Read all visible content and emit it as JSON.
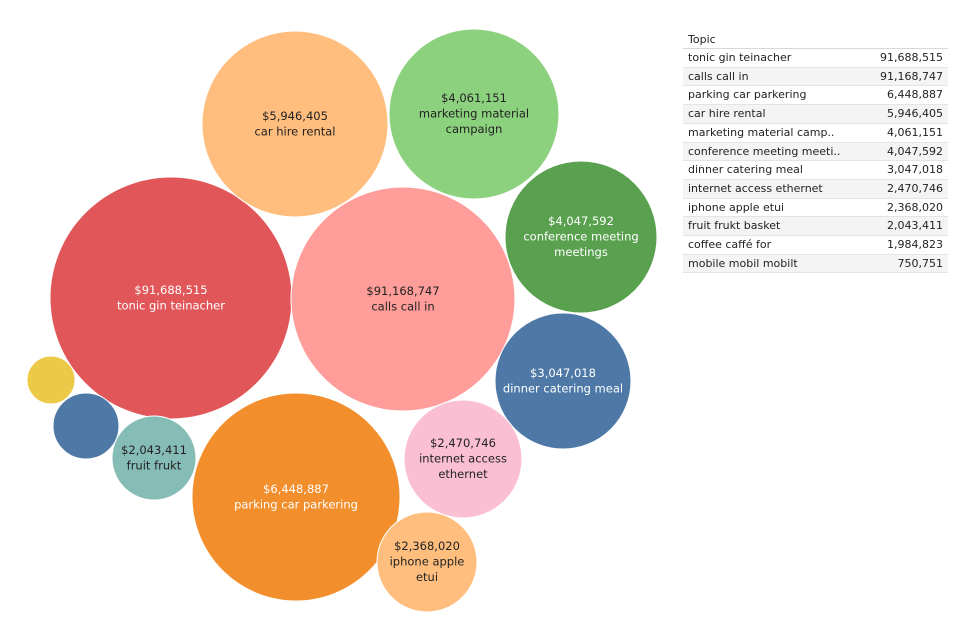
{
  "chart_data": {
    "type": "packed-bubble",
    "value_prefix": "$",
    "bubbles": [
      {
        "label": "tonic gin teinacher",
        "value": 91688515,
        "display": "$91,688,515",
        "lines": [
          "tonic gin teinacher"
        ],
        "color": "#e15759"
      },
      {
        "label": "calls call in",
        "value": 91168747,
        "display": "$91,168,747",
        "lines": [
          "calls call in"
        ],
        "color": "#ff9d9a"
      },
      {
        "label": "parking car parkering",
        "value": 6448887,
        "display": "$6,448,887",
        "lines": [
          "parking car parkering"
        ],
        "color": "#f28e2b"
      },
      {
        "label": "car hire rental",
        "value": 5946405,
        "display": "$5,946,405",
        "lines": [
          "car hire rental"
        ],
        "color": "#ffbe7d"
      },
      {
        "label": "marketing material campaign",
        "value": 4061151,
        "display": "$4,061,151",
        "lines": [
          "marketing material",
          "campaign"
        ],
        "color": "#8cd17d"
      },
      {
        "label": "conference meeting meetings",
        "value": 4047592,
        "display": "$4,047,592",
        "lines": [
          "conference meeting",
          "meetings"
        ],
        "color": "#59a14f"
      },
      {
        "label": "dinner catering meal",
        "value": 3047018,
        "display": "$3,047,018",
        "lines": [
          "dinner catering meal"
        ],
        "color": "#4e79a7"
      },
      {
        "label": "internet access ethernet",
        "value": 2470746,
        "display": "$2,470,746",
        "lines": [
          "internet access",
          "ethernet"
        ],
        "color": "#fabfd2"
      },
      {
        "label": "iphone apple etui",
        "value": 2368020,
        "display": "$2,368,020",
        "lines": [
          "iphone apple",
          "etui"
        ],
        "color": "#ffbe7d"
      },
      {
        "label": "fruit frukt basket",
        "value": 2043411,
        "display": "$2,043,411",
        "lines": [
          "fruit frukt"
        ],
        "color": "#86bcb6"
      },
      {
        "label": "coffee caffé for",
        "value": 1984823,
        "display": "",
        "lines": [],
        "color": "#4e79a7"
      },
      {
        "label": "mobile mobil mobilt",
        "value": 750751,
        "display": "",
        "lines": [],
        "color": "#edc948"
      }
    ]
  },
  "table": {
    "header": "Topic",
    "rows": [
      {
        "topic": "tonic gin teinacher",
        "value": "91,688,515"
      },
      {
        "topic": "calls call in",
        "value": "91,168,747"
      },
      {
        "topic": "parking car parkering",
        "value": "6,448,887"
      },
      {
        "topic": "car hire rental",
        "value": "5,946,405"
      },
      {
        "topic": "marketing material camp..",
        "value": "4,061,151"
      },
      {
        "topic": "conference meeting meeti..",
        "value": "4,047,592"
      },
      {
        "topic": "dinner catering meal",
        "value": "3,047,018"
      },
      {
        "topic": "internet access ethernet",
        "value": "2,470,746"
      },
      {
        "topic": "iphone apple etui",
        "value": "2,368,020"
      },
      {
        "topic": "fruit frukt basket",
        "value": "2,043,411"
      },
      {
        "topic": "coffee caffé for",
        "value": "1,984,823"
      },
      {
        "topic": "mobile mobil mobilt",
        "value": "750,751"
      }
    ]
  }
}
